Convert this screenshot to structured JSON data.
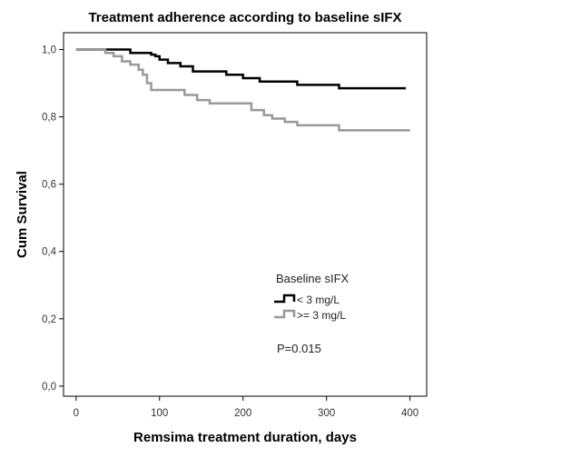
{
  "chart_data": {
    "type": "line",
    "title": "Treatment adherence according to baseline sIFX",
    "xlabel": "Remsima treatment duration, days",
    "ylabel": "Cum Survival",
    "xlim": [
      -15,
      420
    ],
    "ylim": [
      -0.03,
      1.05
    ],
    "x_ticks": [
      0,
      100,
      200,
      300,
      400
    ],
    "x_tick_labels": [
      "0",
      "100",
      "200",
      "300",
      "400"
    ],
    "y_ticks": [
      0.0,
      0.2,
      0.4,
      0.6,
      0.8,
      1.0
    ],
    "y_tick_labels": [
      "0,0",
      "0,2",
      "0,4",
      "0,6",
      "0,8",
      "1,0"
    ],
    "grid": false,
    "legend_title": "Baseline sIFX",
    "legend_position": "lower-center",
    "annotation": "P=0.015",
    "series": [
      {
        "name": "< 3 mg/L",
        "color": "#000000",
        "step": true,
        "x": [
          0,
          65,
          80,
          90,
          95,
          100,
          110,
          125,
          140,
          180,
          200,
          220,
          265,
          315,
          395
        ],
        "y": [
          1.0,
          0.99,
          0.99,
          0.985,
          0.98,
          0.97,
          0.96,
          0.95,
          0.935,
          0.925,
          0.915,
          0.905,
          0.895,
          0.885,
          0.885
        ]
      },
      {
        "name": ">= 3 mg/L",
        "color": "#999999",
        "step": true,
        "x": [
          0,
          35,
          45,
          55,
          65,
          75,
          80,
          85,
          90,
          100,
          130,
          145,
          160,
          210,
          225,
          235,
          250,
          265,
          315,
          400
        ],
        "y": [
          1.0,
          0.99,
          0.98,
          0.965,
          0.955,
          0.94,
          0.925,
          0.9,
          0.88,
          0.88,
          0.865,
          0.85,
          0.84,
          0.82,
          0.805,
          0.795,
          0.785,
          0.775,
          0.76,
          0.76
        ]
      }
    ]
  }
}
